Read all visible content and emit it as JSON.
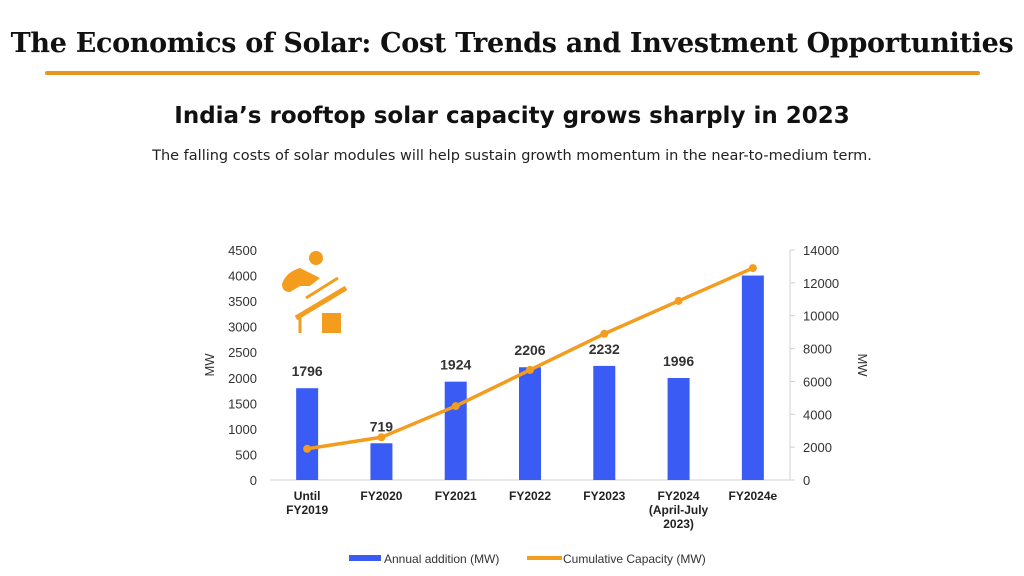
{
  "header": {
    "title": "The Economics of Solar: Cost Trends and Investment Opportunities"
  },
  "colors": {
    "accent": "#e8961e",
    "bar": "#3a5cf5",
    "line": "#f39c1e"
  },
  "chart_data": {
    "type": "bar+line",
    "title": "India’s rooftop solar capacity grows sharply in 2023",
    "subtitle": "The falling costs of solar modules will help sustain growth momentum in the near-to-medium term.",
    "categories": [
      [
        "Until",
        "FY2019"
      ],
      [
        "FY2020"
      ],
      [
        "FY2021"
      ],
      [
        "FY2022"
      ],
      [
        "FY2023"
      ],
      [
        "FY2024",
        "(April-July",
        "2023)"
      ],
      [
        "FY2024e"
      ]
    ],
    "series": [
      {
        "name": "Annual addition (MW)",
        "type": "bar",
        "axis": "left",
        "values": [
          1796,
          719,
          1924,
          2206,
          2232,
          1996,
          4000
        ],
        "labels": [
          "1796",
          "719",
          "1924",
          "2206",
          "2232",
          "1996",
          ""
        ]
      },
      {
        "name": "Cumulative Capacity (MW)",
        "type": "line",
        "axis": "right",
        "values": [
          1900,
          2600,
          4500,
          6700,
          8900,
          10900,
          12900
        ]
      }
    ],
    "ylabel_left": "MW",
    "ylabel_right": "MW",
    "ylim_left": [
      0,
      4500
    ],
    "yticks_left": [
      0,
      500,
      1000,
      1500,
      2000,
      2500,
      3000,
      3500,
      4000,
      4500
    ],
    "ylim_right": [
      0,
      14000
    ],
    "yticks_right": [
      0,
      2000,
      4000,
      6000,
      8000,
      10000,
      12000,
      14000
    ],
    "legend": "bottom",
    "grid": false,
    "icon": "solar-installer-icon"
  }
}
